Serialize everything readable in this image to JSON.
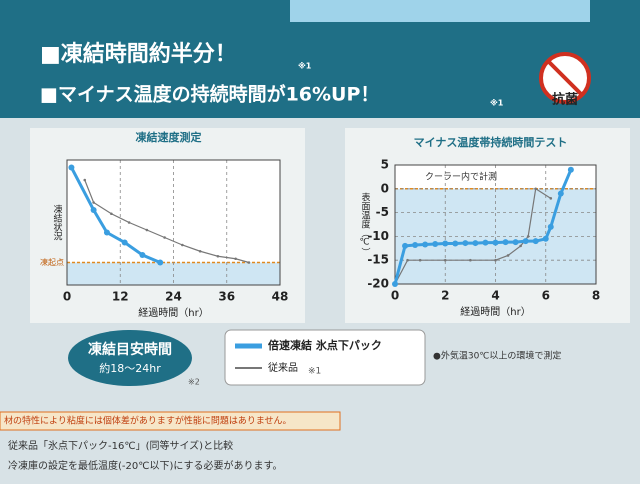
{
  "header": {
    "line1": "■凍結時間約半分！",
    "note1": "※1",
    "line2": "■マイナス温度の持続時間が16%UP！",
    "note2": "※1",
    "badge": "抗菌"
  },
  "chart_data": [
    {
      "type": "line",
      "title": "凍結速度測定",
      "xlabel": "経過時間（hr）",
      "ylabel": "凍結状況",
      "xlim": [
        0,
        48
      ],
      "xticks": [
        0,
        12,
        24,
        36,
        48
      ],
      "ylim": [
        0,
        100
      ],
      "grid": true,
      "ref_line": {
        "value": 18,
        "label": "凍起点"
      },
      "series": [
        {
          "name": "倍速凍結 氷点下パック",
          "color": "#3a9ee0",
          "markers": true,
          "x": [
            1,
            6,
            9,
            13,
            17,
            21
          ],
          "values": [
            94,
            60,
            42,
            34,
            24,
            18
          ]
        },
        {
          "name": "従来品",
          "color": "#777777",
          "markers": false,
          "x": [
            4,
            6,
            10,
            14,
            18,
            22,
            26,
            30,
            34,
            38,
            41
          ],
          "values": [
            84,
            66,
            57,
            50,
            44,
            38,
            32,
            27,
            23,
            21,
            18
          ]
        }
      ]
    },
    {
      "type": "line",
      "title": "マイナス温度帯持続時間テスト",
      "xlabel": "経過時間（hr）",
      "ylabel": "表面温度（℃）",
      "annotation": "クーラー内で計測",
      "xlim": [
        0,
        8
      ],
      "xticks": [
        0,
        2,
        4,
        6,
        8
      ],
      "ylim": [
        -20,
        5
      ],
      "yticks": [
        5,
        0,
        -5,
        -10,
        -15,
        -20
      ],
      "grid": true,
      "ref_line": {
        "value": 0
      },
      "series": [
        {
          "color": "#3a9ee0",
          "markers": true,
          "x": [
            0,
            0.4,
            0.8,
            1.2,
            1.6,
            2,
            2.4,
            2.8,
            3.2,
            3.6,
            4,
            4.4,
            4.8,
            5.2,
            5.6,
            6,
            6.2,
            6.6,
            7
          ],
          "values": [
            -20,
            -12,
            -11.8,
            -11.7,
            -11.6,
            -11.5,
            -11.5,
            -11.4,
            -11.4,
            -11.3,
            -11.3,
            -11.2,
            -11.2,
            -11,
            -11,
            -10.5,
            -8,
            -1,
            4
          ]
        },
        {
          "color": "#777777",
          "markers": false,
          "x": [
            0,
            0.5,
            1,
            2,
            3,
            4,
            4.5,
            5,
            5.3,
            5.6,
            6.2
          ],
          "values": [
            -20,
            -15,
            -15,
            -15,
            -15,
            -15,
            -14,
            -12,
            -10,
            0,
            -2
          ]
        }
      ]
    }
  ],
  "box": {
    "title": "凍結目安時間",
    "value": "約18～24hr",
    "note": "※2"
  },
  "legend_note": "※1",
  "measure_note": "●外気温30℃以上の環境で測定",
  "footer": {
    "warning": "材の特性により粘度には個体差がありますが性能に問題はありません。",
    "line1": "従来品「氷点下パック-16℃」(同等サイズ)と比較",
    "line2": "冷凍庫の設定を最低温度(-20℃以下)にする必要があります。"
  }
}
